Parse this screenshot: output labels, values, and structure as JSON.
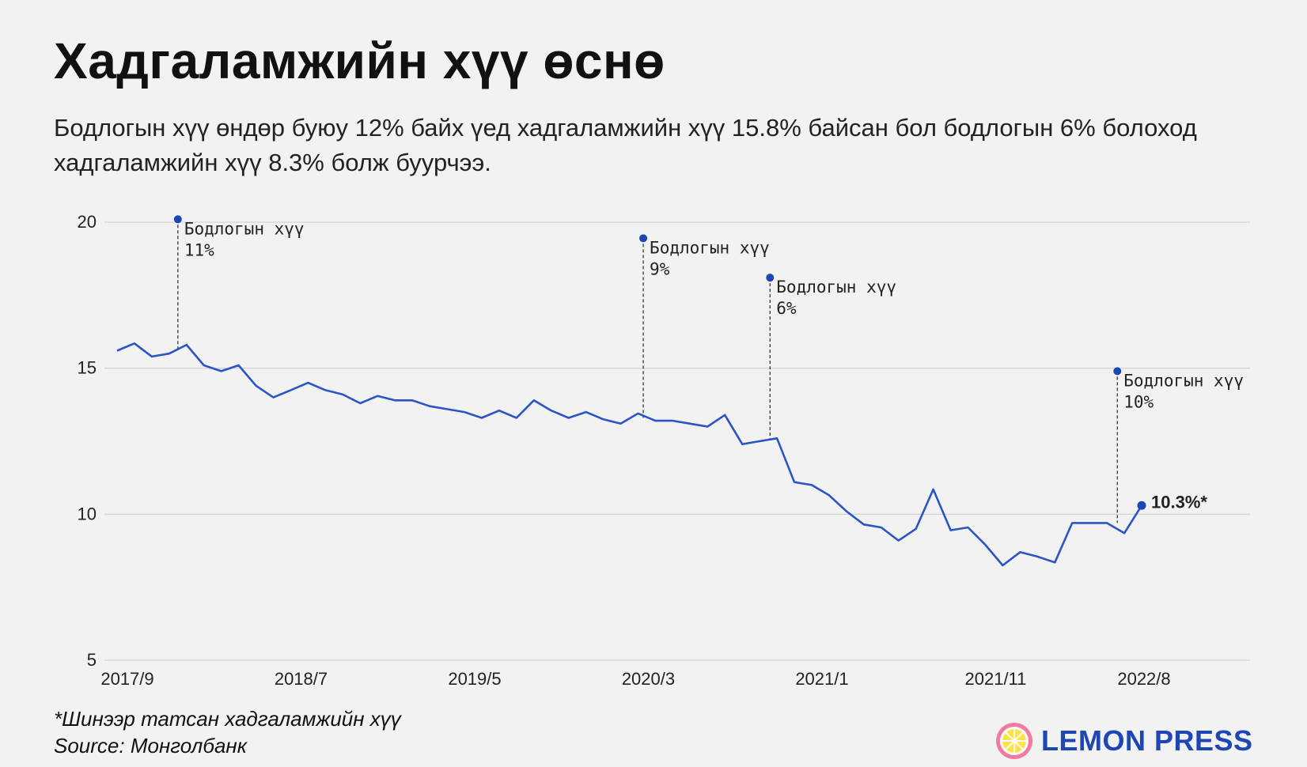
{
  "header": {
    "title": "Хадгаламжийн хүү өснө",
    "subtitle": "Бодлогын хүү өндөр буюу 12% байх үед хадгаламжийн хүү 15.8% байсан бол бодлогын 6% болоход хадгаламжийн хүү 8.3% болж буурчээ."
  },
  "footer": {
    "note": "*Шинээр татсан хадгаламжийн хүү",
    "source": "Source: Монголбанк",
    "logo_text": "LEMON PRESS"
  },
  "colors": {
    "line": "#2a55c4",
    "marker": "#1e46b4",
    "grid": "#d4d4d4",
    "logo_circle": "#f07aa0",
    "logo_center": "#ffe14a"
  },
  "chart_data": {
    "type": "line",
    "ylim": [
      5,
      20
    ],
    "yticks": [
      5,
      10,
      15,
      20
    ],
    "x_tick_labels": [
      {
        "label": "2017/9",
        "index": 0
      },
      {
        "label": "2018/7",
        "index": 10
      },
      {
        "label": "2019/5",
        "index": 20
      },
      {
        "label": "2020/3",
        "index": 30
      },
      {
        "label": "2021/1",
        "index": 40
      },
      {
        "label": "2021/11",
        "index": 50
      },
      {
        "label": "2022/8",
        "index": 59
      }
    ],
    "grid": true,
    "series": [
      {
        "values": [
          15.6,
          15.85,
          15.4,
          15.5,
          15.8,
          15.1,
          14.9,
          15.1,
          14.4,
          14.0,
          14.25,
          14.5,
          14.25,
          14.1,
          13.8,
          14.05,
          13.9,
          13.9,
          13.7,
          13.6,
          13.5,
          13.3,
          13.55,
          13.3,
          13.9,
          13.55,
          13.3,
          13.5,
          13.25,
          13.1,
          13.45,
          13.2,
          13.2,
          13.1,
          13.0,
          13.4,
          12.4,
          12.5,
          12.6,
          11.1,
          11.0,
          10.65,
          10.1,
          9.65,
          9.55,
          9.1,
          9.5,
          10.85,
          9.45,
          9.55,
          8.95,
          8.25,
          8.7,
          8.55,
          8.35,
          9.7,
          9.7,
          9.7,
          9.35,
          10.3
        ]
      }
    ],
    "end_label": "10.3%*",
    "annotations": [
      {
        "index": 3.5,
        "value": 20.1,
        "base": 15.65,
        "line1": "Бодлогын хүү",
        "line2": "11%"
      },
      {
        "index": 30.3,
        "value": 19.45,
        "base": 13.3,
        "line1": "Бодлогын хүү",
        "line2": "9%"
      },
      {
        "index": 37.6,
        "value": 18.1,
        "base": 12.55,
        "line1": "Бодлогын хүү",
        "line2": "6%"
      },
      {
        "index": 57.6,
        "value": 14.9,
        "base": 9.7,
        "line1": "Бодлогын хүү",
        "line2": "10%"
      }
    ]
  }
}
